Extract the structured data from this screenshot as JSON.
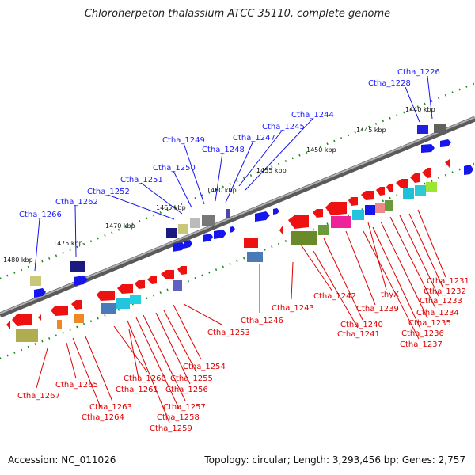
{
  "title": "Chloroherpeton thalassium ATCC 35110, complete genome",
  "footer": {
    "accession": "Accession: NC_011026",
    "summary": "Topology: circular; Length: 3,293,456 bp; Genes: 2,757"
  },
  "scale_labels": [
    "1440 kbp",
    "1445 kbp",
    "1450 kbp",
    "1455 kbp",
    "1460 kbp",
    "1465 kbp",
    "1470 kbp",
    "1475 kbp",
    "1480 kbp"
  ],
  "top_genes": [
    "Ctha_1226",
    "Ctha_1228",
    "Ctha_1244",
    "Ctha_1245",
    "Ctha_1247",
    "Ctha_1248",
    "Ctha_1249",
    "Ctha_1250",
    "Ctha_1251",
    "Ctha_1252",
    "Ctha_1262",
    "Ctha_1266"
  ],
  "bottom_genes": [
    "Ctha_1231",
    "Ctha_1232",
    "Ctha_1233",
    "Ctha_1234",
    "Ctha_1235",
    "Ctha_1236",
    "Ctha_1237",
    "thyX",
    "Ctha_1239",
    "Ctha_1240",
    "Ctha_1241",
    "Ctha_1242",
    "Ctha_1243",
    "Ctha_1246",
    "Ctha_1253",
    "Ctha_1254",
    "Ctha_1255",
    "Ctha_1256",
    "Ctha_1257",
    "Ctha_1258",
    "Ctha_1259",
    "Ctha_1260",
    "Ctha_1261",
    "Ctha_1263",
    "Ctha_1264",
    "Ctha_1265",
    "Ctha_1267"
  ],
  "colors": {
    "forward_strand": "#1515ee",
    "reverse_strand": "#ee1111",
    "backbone": "#808080",
    "ticks": "#1a8a1a",
    "top_label": "#1a1aff",
    "bottom_label": "#e00000"
  }
}
